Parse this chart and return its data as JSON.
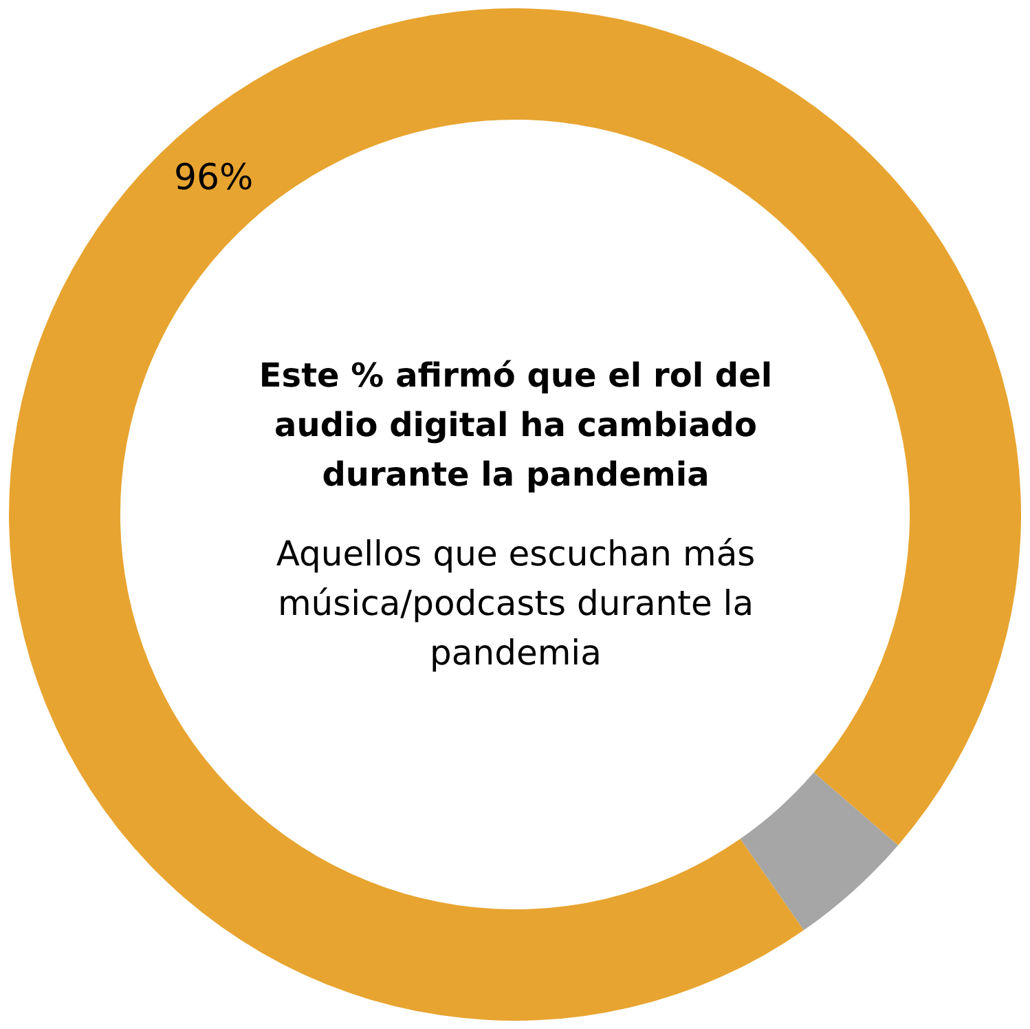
{
  "chart_data": {
    "type": "donut",
    "title": "Este % afirmó que el rol del audio digital ha cambiado durante la pandemia",
    "subtitle": "Aquellos que escuchan más música/podcasts durante la pandemia",
    "categories": [
      null,
      null
    ],
    "values": [
      96,
      4
    ],
    "colors": [
      "#e8a430",
      "#a6a6a6"
    ],
    "value_labels": [
      "96%",
      null
    ],
    "legend": false
  }
}
